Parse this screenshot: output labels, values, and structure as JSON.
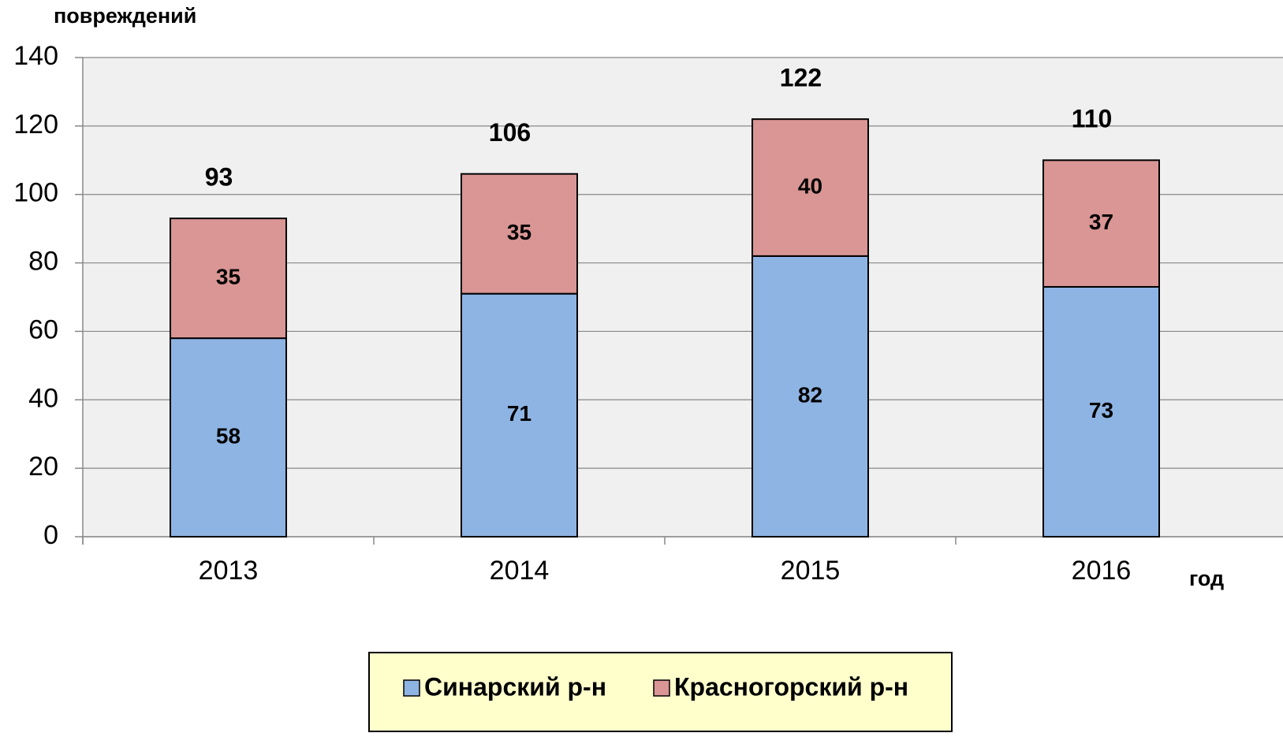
{
  "chart_data": {
    "type": "stacked_bar",
    "y_label": "повреждений",
    "x_label": "год",
    "categories": [
      "2013",
      "2014",
      "2015",
      "2016"
    ],
    "series": [
      {
        "name": "Синарский р-н",
        "color": "#8eb4e3",
        "values": [
          58,
          71,
          82,
          73
        ]
      },
      {
        "name": "Красногорский р-н",
        "color": "#d99694",
        "values": [
          35,
          35,
          40,
          37
        ]
      }
    ],
    "totals": [
      93,
      106,
      122,
      110
    ],
    "ylim": [
      0,
      140
    ],
    "yticks": [
      0,
      20,
      40,
      60,
      80,
      100,
      120,
      140
    ],
    "grid": true,
    "legend": "bottom"
  }
}
